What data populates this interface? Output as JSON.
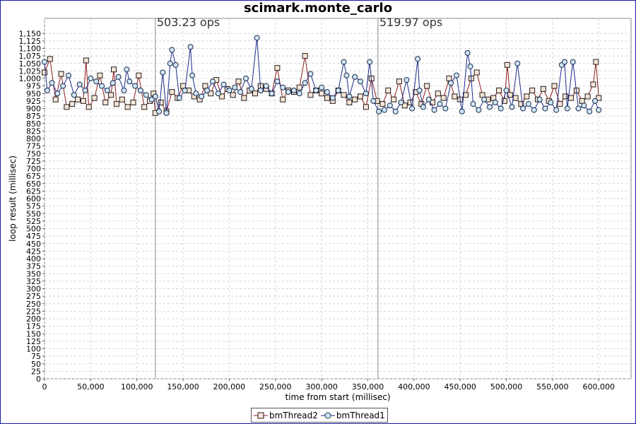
{
  "chart_data": {
    "type": "line",
    "title": "scimark.monte_carlo",
    "xlabel": "time from start (millisec)",
    "ylabel": "loop result (millisec)",
    "xlim": [
      0,
      635000
    ],
    "ylim": [
      0,
      1200
    ],
    "x_ticks": [
      "0",
      "50,000",
      "100,000",
      "150,000",
      "200,000",
      "250,000",
      "300,000",
      "350,000",
      "400,000",
      "450,000",
      "500,000",
      "550,000",
      "600,000"
    ],
    "y_ticks": [
      "0",
      "25",
      "50",
      "75",
      "100",
      "125",
      "150",
      "175",
      "200",
      "225",
      "250",
      "275",
      "300",
      "325",
      "350",
      "375",
      "400",
      "425",
      "450",
      "475",
      "500",
      "525",
      "550",
      "575",
      "600",
      "625",
      "650",
      "675",
      "700",
      "725",
      "750",
      "775",
      "800",
      "825",
      "850",
      "875",
      "900",
      "925",
      "950",
      "975",
      "1,000",
      "1,025",
      "1,050",
      "1,075",
      "1,100",
      "1,125",
      "1,150"
    ],
    "grid": true,
    "legend_position": "bottom",
    "markers": [
      {
        "x": 120000,
        "label": "503.23 ops"
      },
      {
        "x": 361000,
        "label": "519.97 ops"
      }
    ],
    "series": [
      {
        "name": "bmThread2",
        "color": "#8b1a1a",
        "marker": "square",
        "x": [
          0,
          6000,
          12000,
          18000,
          24000,
          30000,
          36000,
          42000,
          45000,
          48000,
          54000,
          60000,
          66000,
          72000,
          75000,
          78000,
          84000,
          90000,
          96000,
          102000,
          108000,
          114000,
          118000,
          120000,
          126000,
          132000,
          138000,
          144000,
          150000,
          156000,
          162000,
          168000,
          174000,
          180000,
          186000,
          192000,
          198000,
          204000,
          210000,
          216000,
          222000,
          228000,
          234000,
          240000,
          246000,
          252000,
          258000,
          264000,
          270000,
          276000,
          282000,
          288000,
          294000,
          300000,
          306000,
          312000,
          318000,
          324000,
          330000,
          336000,
          342000,
          348000,
          354000,
          360000,
          366000,
          372000,
          378000,
          384000,
          390000,
          396000,
          402000,
          408000,
          414000,
          420000,
          426000,
          432000,
          438000,
          444000,
          450000,
          456000,
          462000,
          468000,
          474000,
          480000,
          486000,
          492000,
          498000,
          501000,
          504000,
          510000,
          516000,
          522000,
          528000,
          534000,
          540000,
          546000,
          552000,
          558000,
          564000,
          570000,
          576000,
          582000,
          588000,
          594000,
          597000,
          600000
        ],
        "values": [
          1020,
          1065,
          930,
          1015,
          905,
          915,
          930,
          925,
          1060,
          905,
          935,
          1010,
          920,
          945,
          1030,
          915,
          930,
          905,
          920,
          1010,
          905,
          925,
          950,
          885,
          920,
          890,
          955,
          935,
          975,
          960,
          940,
          930,
          975,
          950,
          995,
          940,
          965,
          945,
          990,
          935,
          960,
          950,
          975,
          965,
          950,
          1035,
          930,
          960,
          955,
          970,
          1075,
          945,
          960,
          950,
          935,
          925,
          960,
          945,
          920,
          930,
          940,
          905,
          1000,
          925,
          915,
          960,
          930,
          990,
          910,
          920,
          955,
          915,
          975,
          920,
          950,
          935,
          1000,
          940,
          930,
          945,
          1000,
          1020,
          945,
          930,
          935,
          960,
          925,
          1045,
          945,
          935,
          915,
          940,
          960,
          930,
          965,
          925,
          975,
          915,
          940,
          935,
          960,
          925,
          940,
          980,
          1055,
          935
        ]
      },
      {
        "name": "bmThread1",
        "color": "#1a2a8b",
        "marker": "circle",
        "x": [
          0,
          3000,
          8000,
          14000,
          20000,
          26000,
          32000,
          38000,
          44000,
          50000,
          56000,
          62000,
          68000,
          74000,
          80000,
          86000,
          89000,
          92000,
          98000,
          104000,
          110000,
          116000,
          120000,
          124000,
          128000,
          132000,
          136000,
          138000,
          142000,
          146000,
          152000,
          158000,
          160000,
          164000,
          170000,
          176000,
          182000,
          188000,
          194000,
          200000,
          206000,
          212000,
          218000,
          224000,
          230000,
          234000,
          240000,
          246000,
          252000,
          258000,
          264000,
          270000,
          276000,
          282000,
          288000,
          294000,
          300000,
          306000,
          312000,
          318000,
          324000,
          327000,
          330000,
          336000,
          342000,
          348000,
          352000,
          356000,
          362000,
          368000,
          374000,
          380000,
          386000,
          392000,
          398000,
          404000,
          406000,
          410000,
          416000,
          422000,
          428000,
          434000,
          440000,
          446000,
          452000,
          458000,
          461000,
          464000,
          470000,
          476000,
          482000,
          488000,
          494000,
          500000,
          506000,
          512000,
          518000,
          524000,
          530000,
          536000,
          542000,
          548000,
          554000,
          560000,
          563000,
          566000,
          572000,
          578000,
          584000,
          590000,
          596000,
          600000
        ],
        "values": [
          1055,
          960,
          985,
          950,
          975,
          1010,
          945,
          980,
          960,
          1000,
          990,
          975,
          960,
          985,
          1005,
          960,
          1030,
          990,
          975,
          960,
          945,
          930,
          940,
          890,
          1020,
          885,
          1050,
          1095,
          1045,
          935,
          960,
          1105,
          1010,
          950,
          940,
          960,
          990,
          950,
          980,
          960,
          970,
          955,
          1000,
          965,
          1135,
          960,
          975,
          950,
          990,
          970,
          955,
          960,
          950,
          985,
          1015,
          960,
          970,
          955,
          935,
          960,
          1055,
          1010,
          940,
          1005,
          990,
          950,
          1055,
          925,
          890,
          895,
          910,
          890,
          920,
          995,
          900,
          1065,
          960,
          905,
          930,
          895,
          915,
          900,
          985,
          1010,
          890,
          1085,
          1040,
          915,
          895,
          930,
          905,
          920,
          900,
          960,
          905,
          1050,
          900,
          915,
          895,
          930,
          900,
          920,
          895,
          1045,
          1055,
          900,
          1055,
          900,
          910,
          890,
          925,
          895
        ]
      }
    ]
  }
}
